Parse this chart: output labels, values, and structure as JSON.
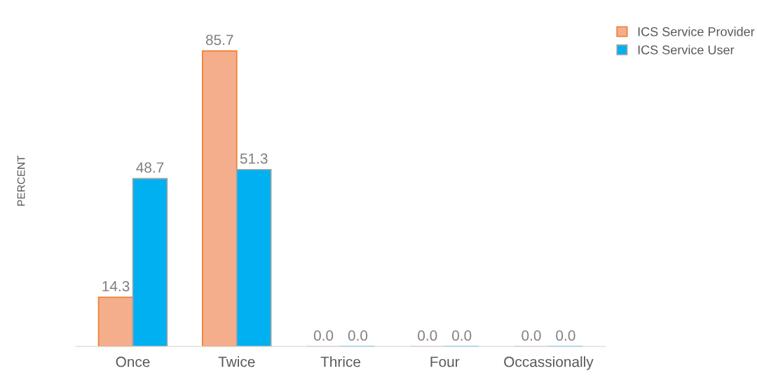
{
  "chart_data": {
    "type": "bar",
    "ylabel": "PERCENT",
    "categories": [
      "Once",
      "Twice",
      "Thrice",
      "Four",
      "Occassionally"
    ],
    "series": [
      {
        "name": "ICS Service Provider",
        "color": "#f4ae8c",
        "values": [
          14.3,
          85.7,
          0.0,
          0.0,
          0.0
        ],
        "value_labels": [
          "14.3",
          "85.7",
          "0.0",
          "0.0",
          "0.0"
        ]
      },
      {
        "name": "ICS Service User",
        "color": "#00b0f0",
        "values": [
          48.7,
          51.3,
          0.0,
          0.0,
          0.0
        ],
        "value_labels": [
          "48.7",
          "51.3",
          "0.0",
          "0.0",
          "0.0"
        ]
      }
    ],
    "legend": "top right",
    "grid": false
  }
}
